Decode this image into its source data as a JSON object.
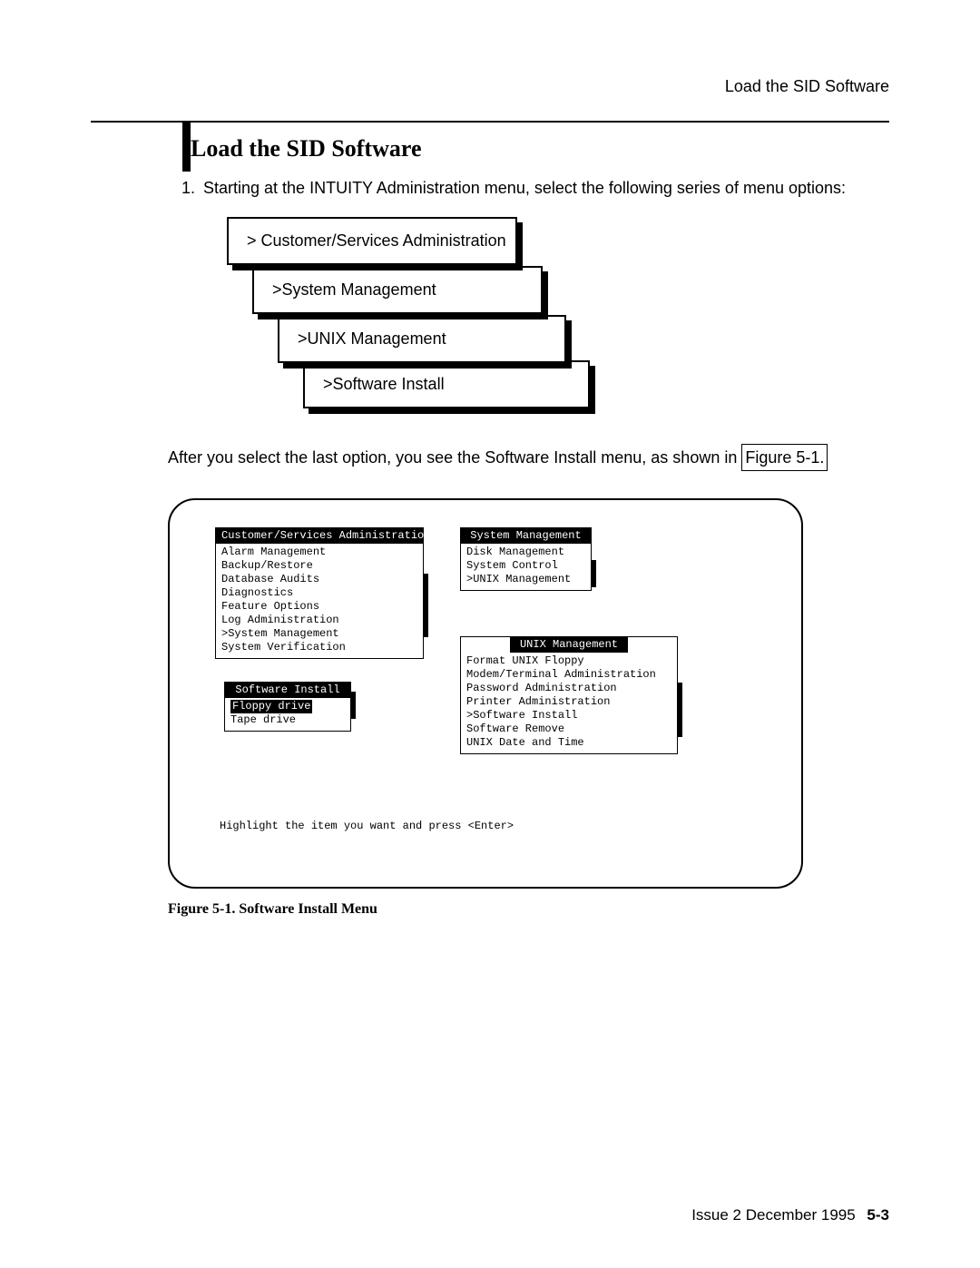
{
  "header": {
    "label": "Load the SID Software"
  },
  "title": "Load the SID Software",
  "step": {
    "num": "1.",
    "text": "Starting at the INTUITY Administration menu, select the following series of menu options:"
  },
  "cascade": {
    "items": [
      "> Customer/Services Administration",
      ">System Management",
      ">UNIX Management",
      ">Software Install"
    ]
  },
  "after": {
    "text_before": "After you select the last option, you see the Software Install menu, as shown in ",
    "fig_link": "Figure 5-1."
  },
  "figure": {
    "csa": {
      "title": "Customer/Services Administration",
      "items": [
        "Alarm Management",
        "Backup/Restore",
        "Database Audits",
        "Diagnostics",
        "Feature Options",
        "Log Administration",
        ">System Management",
        "System Verification"
      ]
    },
    "si": {
      "title": "Software Install",
      "items": [
        "Floppy drive",
        "Tape drive"
      ],
      "selected_index": 0
    },
    "sm": {
      "title": "System Management",
      "items": [
        "Disk Management",
        "System Control",
        ">UNIX Management"
      ]
    },
    "um": {
      "title": "UNIX Management",
      "items": [
        "Format UNIX Floppy",
        "Modem/Terminal Administration",
        "Password Administration",
        "Printer Administration",
        ">Software Install",
        "Software Remove",
        "UNIX Date and Time"
      ]
    },
    "prompt": "Highlight the item you want and press <Enter>",
    "caption": "Figure 5-1.   Software Install Menu"
  },
  "footer": {
    "issue": "Issue 2   December 1995",
    "page": "5-3"
  }
}
